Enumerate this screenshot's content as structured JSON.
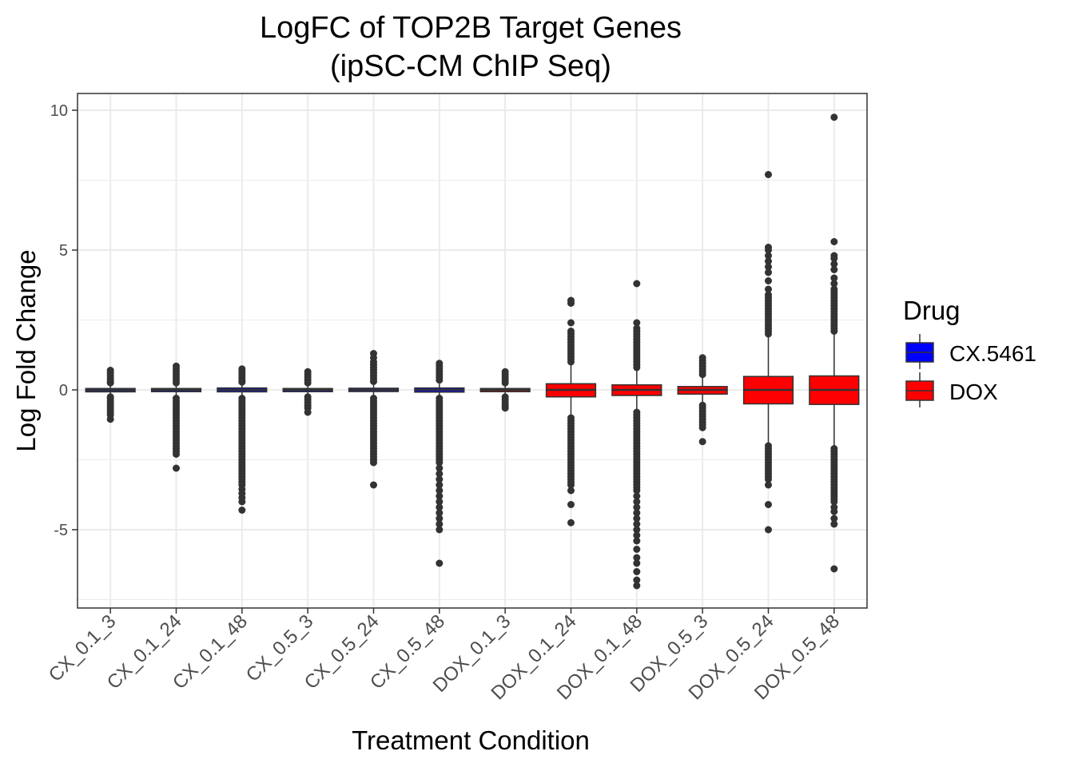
{
  "chart_data": {
    "type": "box",
    "title_line1": "LogFC of TOP2B Target Genes",
    "title_line2": "(ipSC-CM ChIP Seq)",
    "xlabel": "Treatment Condition",
    "ylabel": "Log Fold Change",
    "ylim": [
      -7.8,
      10.6
    ],
    "yticks": [
      {
        "value": -5,
        "label": "-5"
      },
      {
        "value": 0,
        "label": "0"
      },
      {
        "value": 5,
        "label": "5"
      },
      {
        "value": 10,
        "label": "10"
      }
    ],
    "grid": true,
    "legend": {
      "title": "Drug",
      "position": "right",
      "items": [
        {
          "label": "CX.5461",
          "color": "#0000ff"
        },
        {
          "label": "DOX",
          "color": "#ff0000"
        }
      ]
    },
    "colors": {
      "CX.5461": "#0000ff",
      "DOX": "#ff0000",
      "outline": "#333333",
      "grid": "#ebebeb"
    },
    "categories": [
      "CX_0.1_3",
      "CX_0.1_24",
      "CX_0.1_48",
      "CX_0.5_3",
      "CX_0.5_24",
      "CX_0.5_48",
      "DOX_0.1_3",
      "DOX_0.1_24",
      "DOX_0.1_48",
      "DOX_0.5_3",
      "DOX_0.5_24",
      "DOX_0.5_48"
    ],
    "boxes": [
      {
        "category": "CX_0.1_3",
        "drug": "CX.5461",
        "q1": -0.07,
        "median": -0.01,
        "q3": 0.05,
        "whisker_low": -0.2,
        "whisker_high": 0.15,
        "outliers": [
          0.7,
          0.6,
          0.5,
          0.4,
          0.3,
          0.25,
          -0.25,
          -0.3,
          -0.4,
          -0.5,
          -0.6,
          -0.7,
          -0.8,
          -0.9,
          -1.05
        ]
      },
      {
        "category": "CX_0.1_24",
        "drug": "CX.5461",
        "q1": -0.06,
        "median": 0.0,
        "q3": 0.05,
        "whisker_low": -0.2,
        "whisker_high": 0.18,
        "outliers": [
          0.85,
          0.75,
          0.65,
          0.55,
          0.45,
          0.35,
          0.25,
          -0.3,
          -0.4,
          -0.5,
          -0.6,
          -0.7,
          -0.8,
          -0.9,
          -1.0,
          -1.1,
          -1.2,
          -1.3,
          -1.4,
          -1.5,
          -1.6,
          -1.7,
          -1.8,
          -1.9,
          -2.0,
          -2.1,
          -2.2,
          -2.3,
          -2.8
        ]
      },
      {
        "category": "CX_0.1_48",
        "drug": "CX.5461",
        "q1": -0.07,
        "median": 0.0,
        "q3": 0.07,
        "whisker_low": -0.22,
        "whisker_high": 0.2,
        "outliers": [
          0.75,
          0.65,
          0.55,
          0.45,
          0.35,
          0.28,
          -0.3,
          -0.4,
          -0.5,
          -0.6,
          -0.7,
          -0.8,
          -0.9,
          -1.0,
          -1.1,
          -1.2,
          -1.3,
          -1.4,
          -1.5,
          -1.6,
          -1.7,
          -1.8,
          -1.9,
          -2.0,
          -2.1,
          -2.2,
          -2.3,
          -2.4,
          -2.5,
          -2.6,
          -2.7,
          -2.8,
          -2.9,
          -3.0,
          -3.1,
          -3.2,
          -3.3,
          -3.4,
          -3.55,
          -3.7,
          -3.85,
          -4.0,
          -4.3
        ]
      },
      {
        "category": "CX_0.5_3",
        "drug": "CX.5461",
        "q1": -0.05,
        "median": 0.0,
        "q3": 0.05,
        "whisker_low": -0.18,
        "whisker_high": 0.15,
        "outliers": [
          0.65,
          0.55,
          0.45,
          0.35,
          0.25,
          -0.25,
          -0.35,
          -0.45,
          -0.55,
          -0.65,
          -0.8
        ]
      },
      {
        "category": "CX_0.5_24",
        "drug": "CX.5461",
        "q1": -0.06,
        "median": 0.0,
        "q3": 0.06,
        "whisker_low": -0.2,
        "whisker_high": 0.2,
        "outliers": [
          1.3,
          1.15,
          1.0,
          0.9,
          0.8,
          0.7,
          0.6,
          0.5,
          0.4,
          0.3,
          -0.3,
          -0.4,
          -0.5,
          -0.6,
          -0.7,
          -0.8,
          -0.9,
          -1.0,
          -1.1,
          -1.2,
          -1.3,
          -1.4,
          -1.5,
          -1.6,
          -1.7,
          -1.8,
          -1.9,
          -2.0,
          -2.1,
          -2.2,
          -2.3,
          -2.4,
          -2.5,
          -2.6,
          -3.4
        ]
      },
      {
        "category": "CX_0.5_48",
        "drug": "CX.5461",
        "q1": -0.08,
        "median": 0.0,
        "q3": 0.07,
        "whisker_low": -0.25,
        "whisker_high": 0.22,
        "outliers": [
          0.95,
          0.85,
          0.75,
          0.65,
          0.55,
          0.45,
          0.35,
          -0.3,
          -0.4,
          -0.5,
          -0.6,
          -0.7,
          -0.8,
          -0.9,
          -1.0,
          -1.1,
          -1.2,
          -1.3,
          -1.4,
          -1.5,
          -1.6,
          -1.7,
          -1.8,
          -1.9,
          -2.0,
          -2.1,
          -2.2,
          -2.3,
          -2.4,
          -2.5,
          -2.6,
          -2.8,
          -3.0,
          -3.2,
          -3.4,
          -3.6,
          -3.8,
          -4.0,
          -4.2,
          -4.4,
          -4.6,
          -4.8,
          -5.0,
          -6.2
        ]
      },
      {
        "category": "DOX_0.1_3",
        "drug": "DOX",
        "q1": -0.06,
        "median": 0.0,
        "q3": 0.05,
        "whisker_low": -0.2,
        "whisker_high": 0.18,
        "outliers": [
          0.65,
          0.55,
          0.45,
          0.35,
          0.25,
          -0.25,
          -0.35,
          -0.45,
          -0.55,
          -0.65
        ]
      },
      {
        "category": "DOX_0.1_24",
        "drug": "DOX",
        "q1": -0.25,
        "median": 0.0,
        "q3": 0.22,
        "whisker_low": -0.9,
        "whisker_high": 0.9,
        "outliers": [
          3.2,
          3.1,
          2.4,
          2.1,
          2.0,
          1.9,
          1.8,
          1.7,
          1.6,
          1.5,
          1.4,
          1.3,
          1.2,
          1.1,
          1.0,
          -1.0,
          -1.1,
          -1.2,
          -1.3,
          -1.4,
          -1.5,
          -1.6,
          -1.7,
          -1.8,
          -1.9,
          -2.0,
          -2.1,
          -2.2,
          -2.3,
          -2.4,
          -2.5,
          -2.6,
          -2.7,
          -2.8,
          -2.9,
          -3.0,
          -3.1,
          -3.2,
          -3.3,
          -3.4,
          -3.6,
          -4.1,
          -4.75
        ]
      },
      {
        "category": "DOX_0.1_48",
        "drug": "DOX",
        "q1": -0.2,
        "median": 0.0,
        "q3": 0.18,
        "whisker_low": -0.75,
        "whisker_high": 0.7,
        "outliers": [
          3.8,
          2.4,
          2.2,
          2.1,
          2.0,
          1.9,
          1.8,
          1.7,
          1.6,
          1.5,
          1.4,
          1.3,
          1.2,
          1.1,
          1.0,
          0.9,
          0.8,
          -0.8,
          -0.9,
          -1.0,
          -1.1,
          -1.2,
          -1.3,
          -1.4,
          -1.5,
          -1.6,
          -1.7,
          -1.8,
          -1.9,
          -2.0,
          -2.1,
          -2.2,
          -2.3,
          -2.4,
          -2.5,
          -2.6,
          -2.7,
          -2.8,
          -2.9,
          -3.0,
          -3.1,
          -3.2,
          -3.3,
          -3.4,
          -3.5,
          -3.6,
          -3.8,
          -4.0,
          -4.2,
          -4.4,
          -4.6,
          -4.8,
          -5.0,
          -5.2,
          -5.4,
          -5.7,
          -6.0,
          -6.2,
          -6.5,
          -6.8,
          -7.0
        ]
      },
      {
        "category": "DOX_0.5_3",
        "drug": "DOX",
        "q1": -0.15,
        "median": 0.0,
        "q3": 0.12,
        "whisker_low": -0.5,
        "whisker_high": 0.5,
        "outliers": [
          1.15,
          1.05,
          0.95,
          0.85,
          0.75,
          0.65,
          0.55,
          -0.55,
          -0.65,
          -0.75,
          -0.85,
          -0.95,
          -1.05,
          -1.15,
          -1.25,
          -1.35,
          -1.85
        ]
      },
      {
        "category": "DOX_0.5_24",
        "drug": "DOX",
        "q1": -0.5,
        "median": 0.0,
        "q3": 0.48,
        "whisker_low": -1.95,
        "whisker_high": 1.9,
        "outliers": [
          7.7,
          5.1,
          5.0,
          4.8,
          4.6,
          4.4,
          4.2,
          3.9,
          3.6,
          3.4,
          3.3,
          3.2,
          3.1,
          3.0,
          2.9,
          2.8,
          2.7,
          2.6,
          2.5,
          2.4,
          2.3,
          2.2,
          2.1,
          2.0,
          -2.0,
          -2.1,
          -2.2,
          -2.3,
          -2.4,
          -2.5,
          -2.6,
          -2.7,
          -2.8,
          -2.9,
          -3.0,
          -3.1,
          -3.2,
          -3.4,
          -4.1,
          -5.0
        ]
      },
      {
        "category": "DOX_0.5_48",
        "drug": "DOX",
        "q1": -0.52,
        "median": 0.0,
        "q3": 0.5,
        "whisker_low": -2.0,
        "whisker_high": 2.0,
        "outliers": [
          9.75,
          5.3,
          4.8,
          4.7,
          4.5,
          4.3,
          4.0,
          3.8,
          3.6,
          3.5,
          3.4,
          3.3,
          3.2,
          3.1,
          3.0,
          2.9,
          2.8,
          2.7,
          2.6,
          2.5,
          2.4,
          2.3,
          2.2,
          2.1,
          -2.1,
          -2.2,
          -2.3,
          -2.4,
          -2.5,
          -2.6,
          -2.7,
          -2.8,
          -2.9,
          -3.0,
          -3.1,
          -3.2,
          -3.3,
          -3.4,
          -3.5,
          -3.6,
          -3.7,
          -3.8,
          -3.9,
          -4.0,
          -4.2,
          -4.35,
          -4.6,
          -4.8,
          -6.4
        ]
      }
    ]
  }
}
